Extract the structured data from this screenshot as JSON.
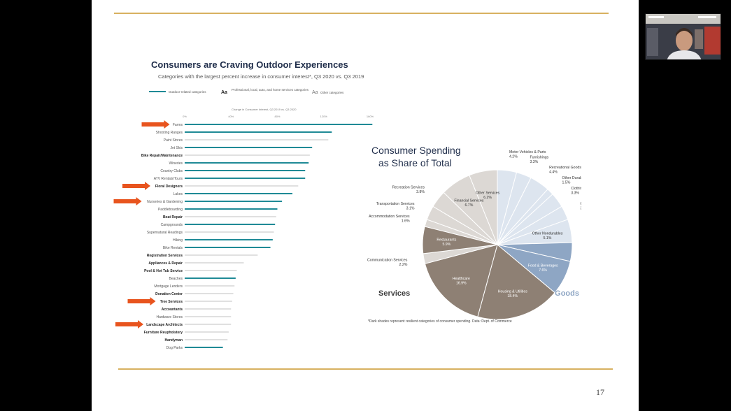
{
  "slide": {
    "page_number": "17"
  },
  "bar_panel": {
    "title": "Consumers are Craving Outdoor Experiences",
    "subtitle": "Categories with the largest percent increase in consumer interest*, Q3 2020 vs. Q3 2019",
    "legend": [
      {
        "marker": "",
        "label": "Outdoor-related categories"
      },
      {
        "marker": "Aa",
        "label": "Professional, local, auto, and home services categories"
      },
      {
        "marker": "Aa",
        "label": "Other categories"
      }
    ],
    "axis_caption": "Change in Consumer Interest, Q3 2019 vs. Q3 2020",
    "axis_ticks": [
      "0%",
      "40%",
      "80%",
      "120%",
      "160%"
    ],
    "colors": {
      "outdoor": "#1f8a96",
      "other": "#d6d6d6",
      "arrow": "#e8541e",
      "title": "#1f2d4a"
    }
  },
  "pie_panel": {
    "title_line1": "Consumer Spending",
    "title_line2": "as Share of Total",
    "services_label": "Services",
    "goods_label": "Goods",
    "footnote": "*Dark shades represent resilient categories of consumer spending.   Data: Dept. of Commerce",
    "colors": {
      "services_dark": "#8e8074",
      "services_light": "#dcd8d4",
      "goods_dark": "#8ea6c4",
      "goods_light": "#dde5ef",
      "services_text": "#3e3e3e",
      "goods_text": "#8ea6c4"
    }
  },
  "chart_data": [
    {
      "type": "bar",
      "title": "Consumers are Craving Outdoor Experiences",
      "subtitle": "Categories with the largest percent increase in consumer interest*, Q3 2020 vs. Q3 2019",
      "xlabel": "Change in Consumer Interest, Q3 2019 vs. Q3 2020",
      "xlim": [
        0,
        160
      ],
      "orientation": "horizontal",
      "categories": [
        "Farms",
        "Shooting Ranges",
        "Paint Stores",
        "Jet Skis",
        "Bike Repair/Maintenance",
        "Wineries",
        "Country Clubs",
        "ATV Rentals/Tours",
        "Floral Designers",
        "Lakes",
        "Nurseries & Gardening",
        "Paddleboarding",
        "Boat Repair",
        "Campgrounds",
        "Supernatural Readings",
        "Hiking",
        "Bike Rentals",
        "Registration Services",
        "Appliances & Repair",
        "Pool & Hot Tub Service",
        "Beaches",
        "Mortgage Lenders",
        "Donation Center",
        "Tree Services",
        "Accountants",
        "Hardware Stores",
        "Landscape Architects",
        "Furniture Reupholstery",
        "Handyman",
        "Dog Parks"
      ],
      "values": [
        162,
        127,
        124,
        110,
        108,
        107,
        104,
        104,
        98,
        93,
        84,
        80,
        79,
        78,
        77,
        76,
        74,
        63,
        51,
        45,
        44,
        43,
        42,
        41,
        40,
        40,
        40,
        38,
        37,
        33
      ],
      "group": [
        "outdoor",
        "outdoor",
        "other",
        "outdoor",
        "services",
        "outdoor",
        "outdoor",
        "outdoor",
        "services",
        "outdoor",
        "outdoor",
        "outdoor",
        "services",
        "outdoor",
        "other",
        "outdoor",
        "outdoor",
        "services",
        "services",
        "services",
        "outdoor",
        "other",
        "services",
        "services",
        "services",
        "other",
        "services",
        "services",
        "services",
        "outdoor"
      ],
      "highlighted": [
        "Farms",
        "Floral Designers",
        "Nurseries & Gardening",
        "Tree Services",
        "Landscape Architects"
      ]
    },
    {
      "type": "pie",
      "title": "Consumer Spending as Share of Total",
      "slices": [
        {
          "label": "Motor Vehicles & Parts",
          "value": 4.2,
          "group": "goods",
          "shade": "light"
        },
        {
          "label": "Furnishings",
          "value": 3.3,
          "group": "goods",
          "shade": "light"
        },
        {
          "label": "Recreational Goods",
          "value": 4.4,
          "group": "goods",
          "shade": "light"
        },
        {
          "label": "Other Durables",
          "value": 1.5,
          "group": "goods",
          "shade": "light"
        },
        {
          "label": "Clothing",
          "value": 3.3,
          "group": "goods",
          "shade": "light"
        },
        {
          "label": "Gasoline",
          "value": 3.1,
          "group": "goods",
          "shade": "light"
        },
        {
          "label": "Other Nondurables",
          "value": 5.1,
          "group": "goods",
          "shade": "light"
        },
        {
          "label": "Pharmaceuticals & Therapeutic Goods",
          "value": 4.1,
          "group": "goods",
          "shade": "dark"
        },
        {
          "label": "Food & Beverages",
          "value": 7.6,
          "group": "goods",
          "shade": "dark"
        },
        {
          "label": "Housing & Utilities",
          "value": 18.4,
          "group": "services",
          "shade": "dark"
        },
        {
          "label": "Healthcare",
          "value": 16.9,
          "group": "services",
          "shade": "dark"
        },
        {
          "label": "Communication Services",
          "value": 2.2,
          "group": "services",
          "shade": "light"
        },
        {
          "label": "Restaurants",
          "value": 5.9,
          "group": "services",
          "shade": "dark"
        },
        {
          "label": "Accommodation Services",
          "value": 1.6,
          "group": "services",
          "shade": "light"
        },
        {
          "label": "Transportation Services",
          "value": 3.1,
          "group": "services",
          "shade": "light"
        },
        {
          "label": "Recreation Services",
          "value": 3.8,
          "group": "services",
          "shade": "light"
        },
        {
          "label": "Financial Services",
          "value": 6.7,
          "group": "services",
          "shade": "light"
        },
        {
          "label": "Other Services",
          "value": 6.2,
          "group": "services",
          "shade": "light"
        }
      ]
    }
  ]
}
